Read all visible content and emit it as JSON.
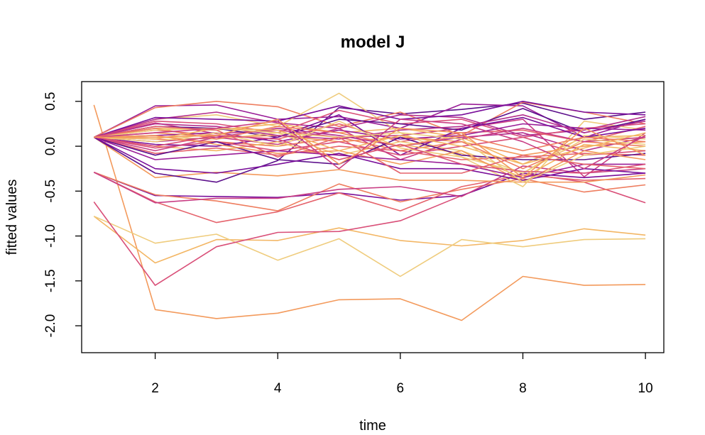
{
  "chart_data": {
    "type": "line",
    "title": "model J",
    "xlabel": "time",
    "ylabel": "fitted values",
    "xlim": [
      0.8,
      10.3
    ],
    "ylim": [
      -2.3,
      0.72
    ],
    "x": [
      1,
      2,
      3,
      4,
      5,
      6,
      7,
      8,
      9,
      10
    ],
    "x_ticks": [
      2,
      4,
      6,
      8,
      10
    ],
    "x_tick_labels": [
      "2",
      "4",
      "6",
      "8",
      "10"
    ],
    "y_ticks": [
      -2.0,
      -1.5,
      -1.0,
      -0.5,
      0.0,
      0.5
    ],
    "y_tick_labels": [
      "-2.0",
      "-1.5",
      "-1.0",
      "-0.5",
      "0.0",
      "0.5"
    ],
    "grid": false,
    "legend": "none",
    "palette": [
      "#5c0f8b",
      "#7a0f9a",
      "#9a1d98",
      "#b42f8e",
      "#c93e84",
      "#d94f78",
      "#e5636c",
      "#ee7d5f",
      "#f39a5c",
      "#f3b664",
      "#efcc7d"
    ],
    "series": [
      {
        "color": "#f39a5c",
        "values": [
          0.46,
          -1.82,
          -1.92,
          -1.86,
          -1.71,
          -1.7,
          -1.94,
          -1.45,
          -1.55,
          -1.54
        ]
      },
      {
        "color": "#f3b664",
        "values": [
          -0.78,
          -1.3,
          -1.04,
          -1.05,
          -0.91,
          -1.05,
          -1.11,
          -1.05,
          -0.92,
          -0.99
        ]
      },
      {
        "color": "#efcc7d",
        "values": [
          -0.78,
          -1.08,
          -0.98,
          -1.27,
          -1.03,
          -1.45,
          -1.04,
          -1.12,
          -1.04,
          -1.03
        ]
      },
      {
        "color": "#d94f78",
        "values": [
          -0.62,
          -1.55,
          -1.12,
          -0.96,
          -0.95,
          -0.83,
          -0.55,
          -0.3,
          -0.4,
          -0.63
        ]
      },
      {
        "color": "#7a0f9a",
        "values": [
          -0.29,
          -0.55,
          -0.56,
          -0.57,
          -0.52,
          -0.6,
          -0.55,
          -0.3,
          -0.35,
          -0.3
        ]
      },
      {
        "color": "#ee7d5f",
        "values": [
          -0.29,
          -0.54,
          -0.61,
          -0.72,
          -0.42,
          -0.62,
          -0.48,
          -0.36,
          -0.51,
          -0.43
        ]
      },
      {
        "color": "#e5636c",
        "values": [
          -0.29,
          -0.62,
          -0.85,
          -0.73,
          -0.52,
          -0.72,
          -0.45,
          -0.32,
          -0.38,
          -0.36
        ]
      },
      {
        "color": "#c93e84",
        "values": [
          -0.29,
          -0.63,
          -0.58,
          -0.58,
          -0.48,
          -0.45,
          -0.56,
          -0.22,
          -0.3,
          -0.25
        ]
      },
      {
        "color": "#f39a5c",
        "values": [
          0.1,
          -0.35,
          -0.29,
          -0.33,
          -0.26,
          -0.38,
          -0.38,
          -0.4,
          -0.4,
          -0.32
        ]
      },
      {
        "color": "#5c0f8b",
        "values": [
          0.1,
          -0.3,
          -0.4,
          -0.16,
          0.43,
          0.36,
          0.41,
          0.48,
          0.3,
          0.38
        ]
      },
      {
        "color": "#9a1d98",
        "values": [
          0.1,
          0.45,
          0.46,
          0.3,
          0.33,
          0.2,
          0.47,
          0.45,
          0.1,
          0.3
        ]
      },
      {
        "color": "#ee7d5f",
        "values": [
          0.1,
          0.43,
          0.5,
          0.44,
          0.22,
          0.38,
          0.12,
          0.49,
          0.38,
          0.25
        ]
      },
      {
        "color": "#efcc7d",
        "values": [
          0.1,
          0.3,
          0.35,
          0.22,
          0.59,
          0.15,
          -0.12,
          -0.45,
          0.28,
          0.18
        ]
      },
      {
        "color": "#b42f8e",
        "values": [
          0.1,
          0.3,
          0.38,
          0.26,
          0.2,
          0.35,
          0.32,
          0.12,
          0.18,
          0.33
        ]
      },
      {
        "color": "#7a0f9a",
        "values": [
          0.1,
          0.32,
          0.3,
          0.28,
          0.45,
          0.3,
          0.35,
          0.5,
          0.38,
          0.35
        ]
      },
      {
        "color": "#d94f78",
        "values": [
          0.1,
          0.28,
          0.25,
          0.15,
          0.4,
          0.25,
          0.3,
          0.1,
          0.2,
          0.25
        ]
      },
      {
        "color": "#c93e84",
        "values": [
          0.1,
          0.26,
          0.14,
          0.18,
          0.1,
          0.12,
          0.2,
          0.3,
          -0.34,
          0.15
        ]
      },
      {
        "color": "#f3b664",
        "values": [
          0.1,
          0.2,
          0.18,
          0.25,
          0.15,
          0.2,
          0.1,
          -0.2,
          0.1,
          0.12
        ]
      },
      {
        "color": "#e5636c",
        "values": [
          0.1,
          0.18,
          0.12,
          0.08,
          0.25,
          0.05,
          0.15,
          0.18,
          0.05,
          0.22
        ]
      },
      {
        "color": "#5c0f8b",
        "values": [
          0.1,
          0.22,
          0.2,
          0.1,
          0.3,
          0.25,
          0.18,
          0.42,
          0.15,
          0.3
        ]
      },
      {
        "color": "#f39a5c",
        "values": [
          0.1,
          0.15,
          0.1,
          0.12,
          0.05,
          0.1,
          0.05,
          -0.1,
          0.0,
          0.05
        ]
      },
      {
        "color": "#9a1d98",
        "values": [
          0.1,
          0.12,
          0.15,
          0.05,
          0.18,
          0.08,
          0.12,
          0.25,
          0.2,
          0.18
        ]
      },
      {
        "color": "#efcc7d",
        "values": [
          0.1,
          0.1,
          0.08,
          0.15,
          -0.1,
          0.05,
          -0.05,
          -0.3,
          0.12,
          0.08
        ]
      },
      {
        "color": "#b42f8e",
        "values": [
          0.1,
          0.05,
          0.1,
          0.2,
          0.12,
          0.0,
          0.1,
          0.15,
          -0.05,
          0.1
        ]
      },
      {
        "color": "#ee7d5f",
        "values": [
          0.1,
          0.08,
          0.05,
          0.0,
          0.1,
          -0.05,
          0.05,
          -0.25,
          0.05,
          0.0
        ]
      },
      {
        "color": "#7a0f9a",
        "values": [
          0.1,
          0.02,
          0.0,
          0.1,
          0.35,
          -0.1,
          0.2,
          0.32,
          0.1,
          0.2
        ]
      },
      {
        "color": "#f3b664",
        "values": [
          0.1,
          0.0,
          -0.05,
          0.05,
          -0.15,
          0.02,
          -0.08,
          -0.35,
          0.02,
          -0.05
        ]
      },
      {
        "color": "#d94f78",
        "values": [
          0.1,
          -0.02,
          0.05,
          -0.05,
          0.05,
          -0.1,
          0.0,
          0.1,
          -0.1,
          -0.05
        ]
      },
      {
        "color": "#c93e84",
        "values": [
          0.1,
          -0.05,
          0.1,
          0.02,
          0.2,
          -0.15,
          0.08,
          0.2,
          0.05,
          0.1
        ]
      },
      {
        "color": "#e5636c",
        "values": [
          0.1,
          -0.08,
          -0.02,
          -0.1,
          0.0,
          -0.05,
          -0.15,
          -0.12,
          -0.08,
          -0.1
        ]
      },
      {
        "color": "#5c0f8b",
        "values": [
          0.1,
          -0.1,
          0.05,
          -0.15,
          -0.2,
          0.1,
          -0.1,
          -0.15,
          -0.15,
          -0.08
        ]
      },
      {
        "color": "#efcc7d",
        "values": [
          0.1,
          0.05,
          0.15,
          0.0,
          0.28,
          -0.02,
          -0.12,
          -0.3,
          0.08,
          0.02
        ]
      },
      {
        "color": "#f39a5c",
        "values": [
          0.1,
          0.12,
          0.02,
          -0.08,
          -0.05,
          -0.2,
          -0.05,
          -0.4,
          -0.05,
          -0.15
        ]
      },
      {
        "color": "#9a1d98",
        "values": [
          0.1,
          -0.15,
          -0.1,
          -0.05,
          -0.1,
          -0.15,
          -0.2,
          -0.35,
          -0.2,
          -0.2
        ]
      },
      {
        "color": "#b42f8e",
        "values": [
          0.1,
          0.25,
          0.22,
          0.12,
          0.08,
          0.18,
          0.22,
          0.35,
          0.15,
          0.28
        ]
      },
      {
        "color": "#ee7d5f",
        "values": [
          0.1,
          0.2,
          0.08,
          0.22,
          0.15,
          0.0,
          0.12,
          -0.05,
          0.1,
          0.05
        ]
      },
      {
        "color": "#f3b664",
        "values": [
          0.1,
          0.08,
          0.2,
          0.18,
          -0.05,
          0.12,
          0.0,
          -0.2,
          -0.02,
          0.15
        ]
      },
      {
        "color": "#d94f78",
        "values": [
          0.1,
          0.0,
          0.12,
          0.08,
          -0.15,
          0.02,
          -0.2,
          -0.28,
          -0.3,
          -0.2
        ]
      },
      {
        "color": "#7a0f9a",
        "values": [
          0.1,
          -0.25,
          -0.3,
          -0.2,
          -0.08,
          -0.25,
          -0.25,
          -0.38,
          -0.25,
          -0.3
        ]
      },
      {
        "color": "#efcc7d",
        "values": [
          0.1,
          0.18,
          0.2,
          0.15,
          0.1,
          0.15,
          0.08,
          -0.4,
          -0.1,
          0.0
        ]
      },
      {
        "color": "#c93e84",
        "values": [
          0.1,
          0.15,
          0.2,
          0.28,
          -0.25,
          0.3,
          0.25,
          0.05,
          -0.25,
          0.12
        ]
      },
      {
        "color": "#e5636c",
        "values": [
          0.1,
          0.22,
          0.18,
          -0.12,
          0.1,
          -0.3,
          -0.3,
          -0.1,
          -0.2,
          -0.25
        ]
      },
      {
        "color": "#f39a5c",
        "values": [
          0.1,
          0.1,
          0.12,
          0.3,
          -0.2,
          0.2,
          0.15,
          -0.35,
          0.2,
          -0.1
        ]
      }
    ]
  }
}
